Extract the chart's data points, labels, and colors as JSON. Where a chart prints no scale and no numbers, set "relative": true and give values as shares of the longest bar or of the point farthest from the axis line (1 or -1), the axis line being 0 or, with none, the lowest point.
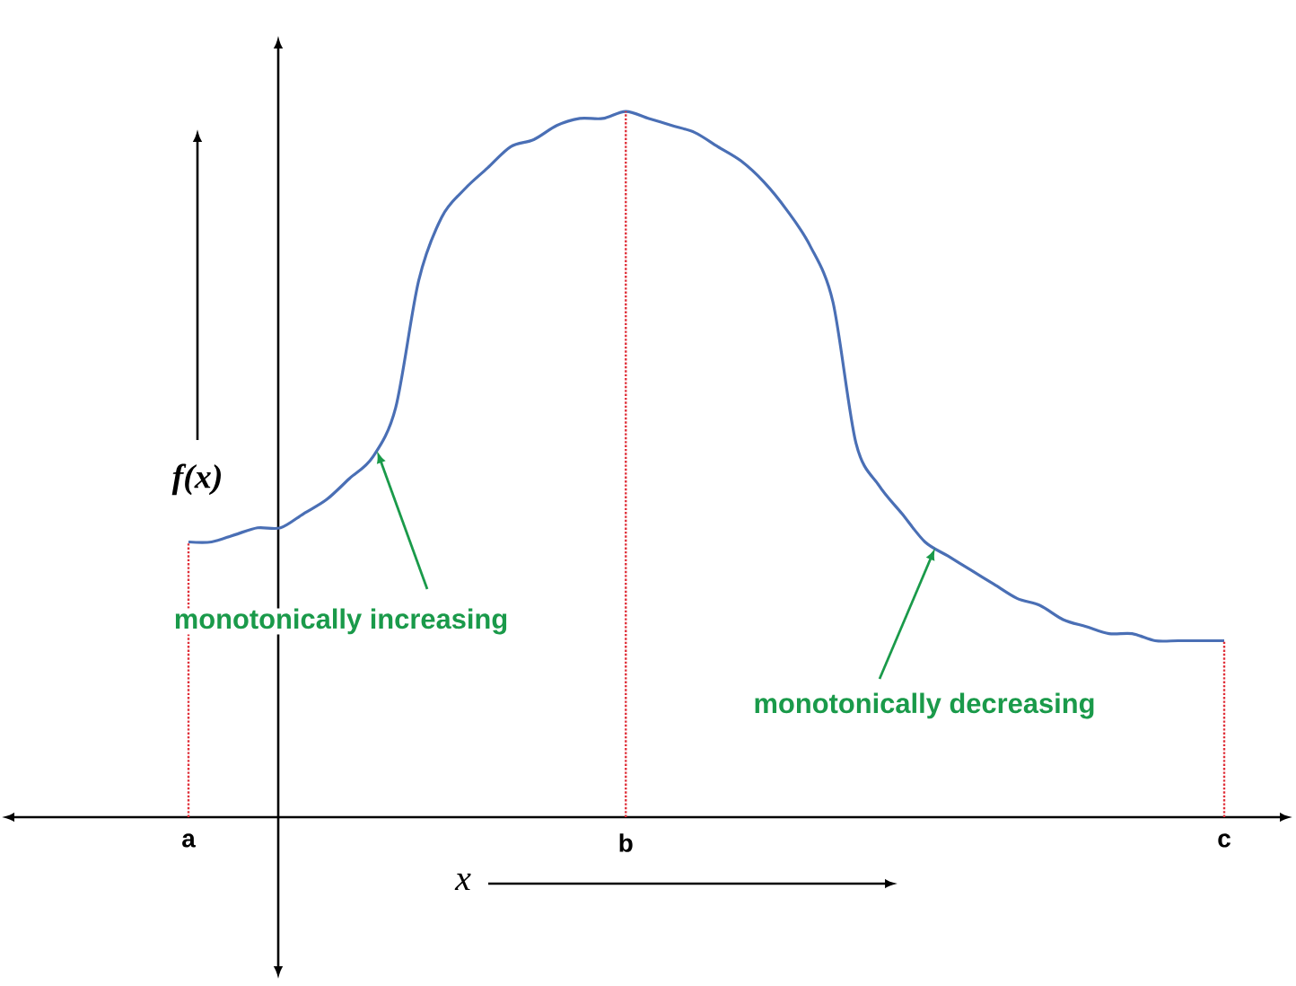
{
  "chart_data": {
    "type": "line",
    "relative": true,
    "xlabel": "x",
    "ylabel": "f(x)",
    "categories": [
      "a",
      null,
      null,
      null,
      null,
      null,
      null,
      null,
      null,
      null,
      null,
      null,
      null,
      null,
      null,
      null,
      null,
      null,
      null,
      "b",
      null,
      null,
      null,
      null,
      null,
      null,
      null,
      null,
      null,
      null,
      null,
      null,
      null,
      null,
      null,
      null,
      null,
      null,
      null,
      null,
      null,
      null,
      null,
      null,
      null,
      "c"
    ],
    "series": [
      {
        "color": "#4a6fb5",
        "values": [
          0.39,
          0.39,
          0.4,
          0.41,
          0.41,
          0.43,
          0.45,
          0.48,
          0.51,
          0.58,
          0.76,
          0.85,
          0.89,
          0.92,
          0.95,
          0.96,
          0.98,
          0.99,
          0.99,
          1,
          0.99,
          0.98,
          0.97,
          0.95,
          0.93,
          0.9,
          0.86,
          0.81,
          0.73,
          0.53,
          0.47,
          0.43,
          0.39,
          0.37,
          0.35,
          0.33,
          0.31,
          0.3,
          0.28,
          0.27,
          0.26,
          0.26,
          0.25,
          0.25,
          0.25,
          0.25
        ]
      }
    ],
    "ref_lines": [
      {
        "axis": "x",
        "value": "a",
        "color": "#e0303a",
        "line_style": "dotted"
      },
      {
        "axis": "x",
        "value": "b",
        "color": "#e0303a",
        "line_style": "dotted"
      },
      {
        "axis": "x",
        "value": "c",
        "color": "#e0303a",
        "line_style": "dotted"
      }
    ],
    "annotations": [
      "monotonically increasing",
      "monotonically decreasing"
    ]
  }
}
